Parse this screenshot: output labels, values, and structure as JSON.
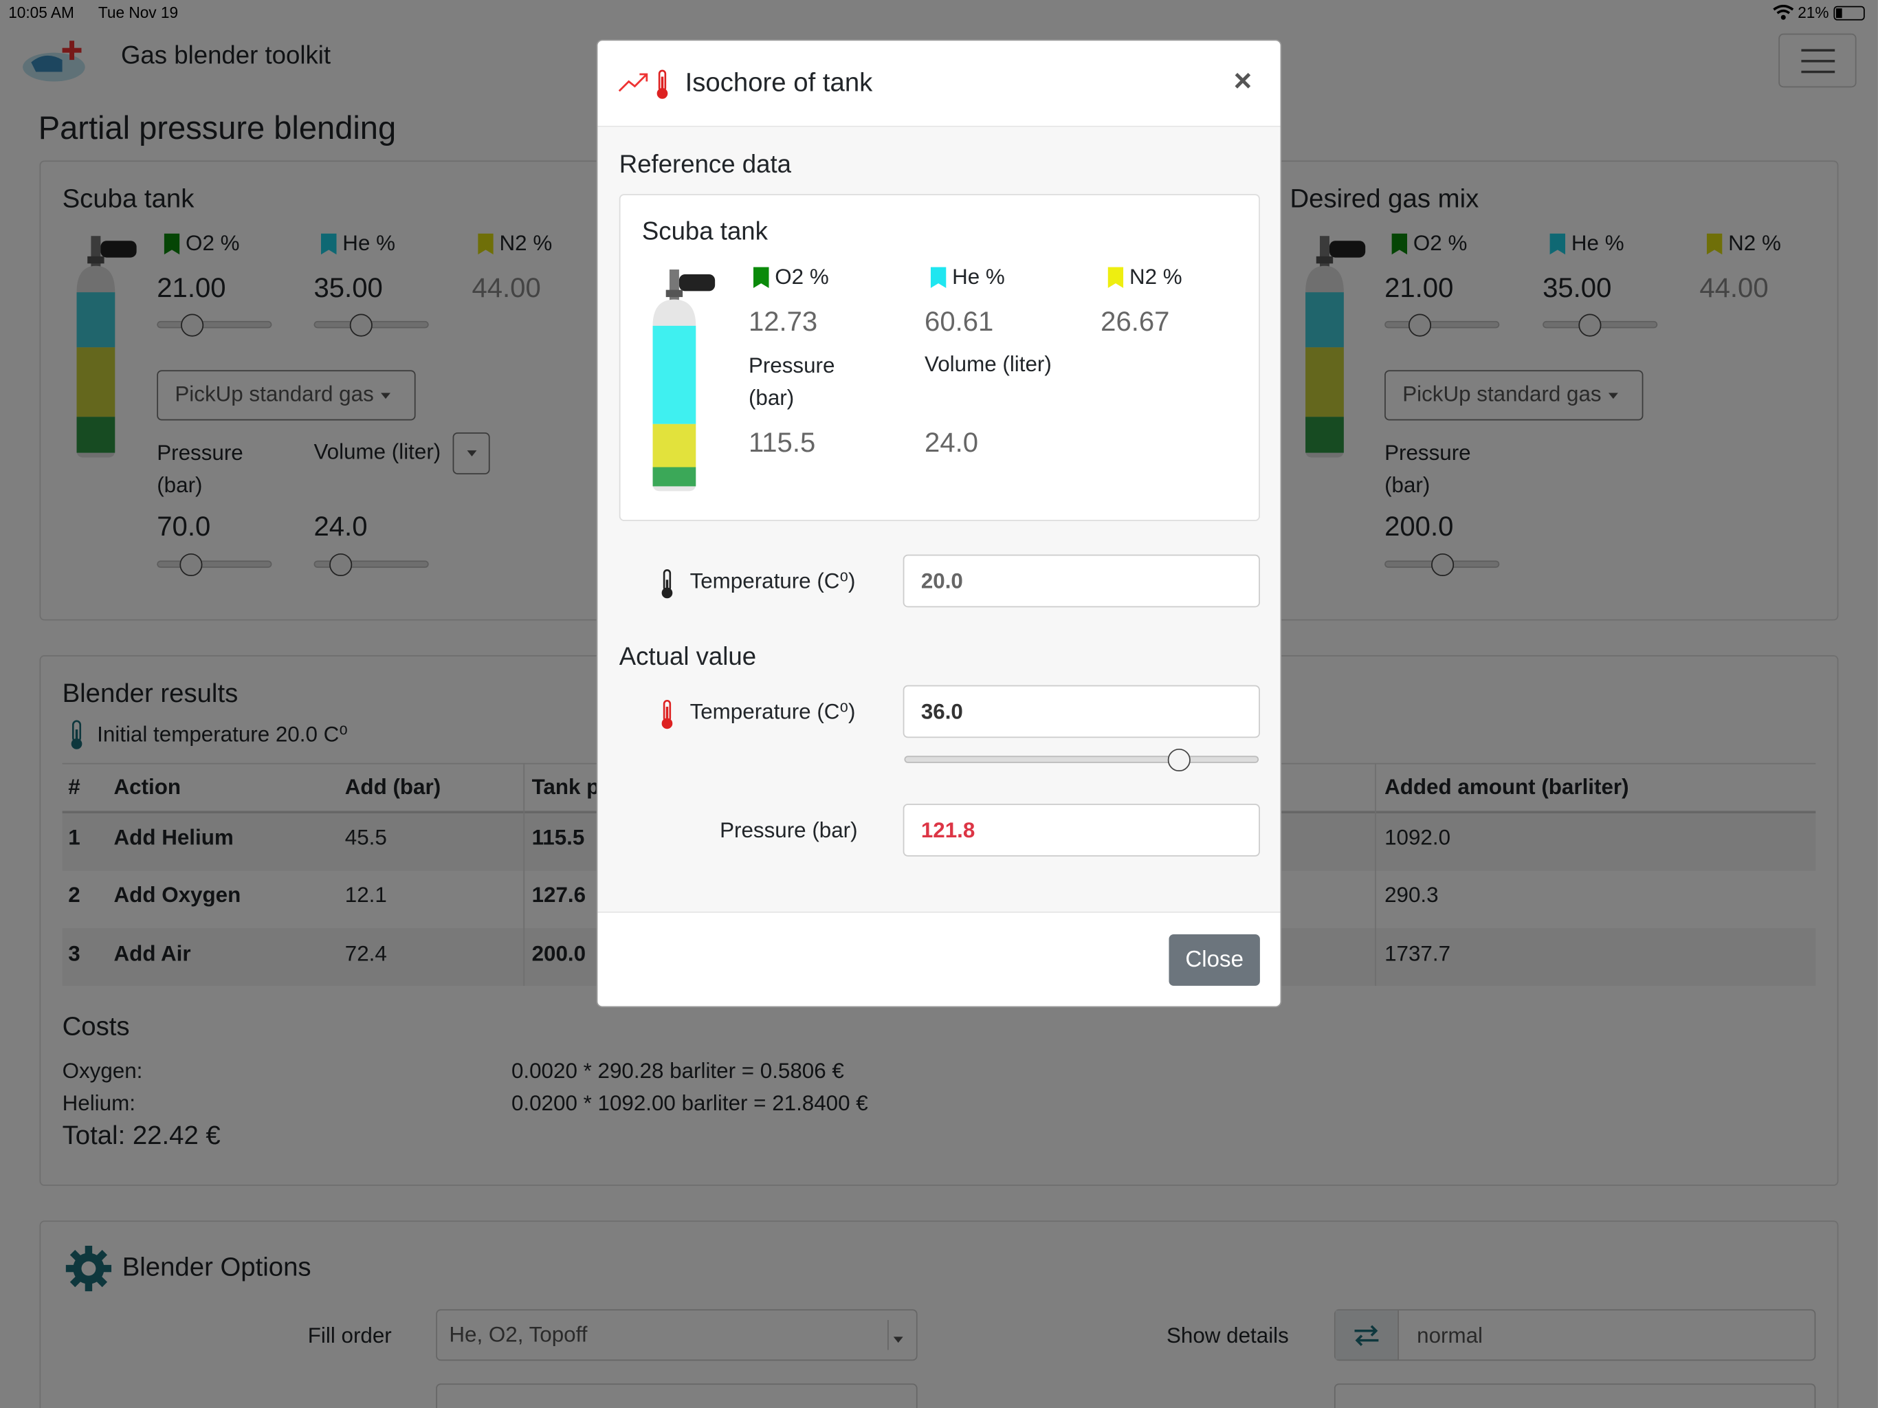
{
  "status_bar": {
    "time": "10:05 AM",
    "date": "Tue Nov 19",
    "battery": "21%"
  },
  "header": {
    "app_title": "Gas blender toolkit",
    "menu_icon": "hamburger-icon"
  },
  "page": {
    "title": "Partial pressure blending"
  },
  "scuba_tank": {
    "title": "Scuba tank",
    "o2_label": "O2 %",
    "he_label": "He %",
    "n2_label": "N2 %",
    "o2": "21.00",
    "he": "35.00",
    "n2": "44.00",
    "standard_gas": "PickUp standard gas",
    "pressure_label_1": "Pressure",
    "pressure_label_2": "(bar)",
    "volume_label": "Volume (liter)",
    "pressure": "70.0",
    "volume": "24.0",
    "sliders": {
      "o2": 0.25,
      "he": 0.38,
      "pressure": 0.23,
      "volume": 0.16
    }
  },
  "desired_mix": {
    "title": "Desired gas mix",
    "o2_label": "O2 %",
    "he_label": "He %",
    "n2_label": "N2 %",
    "o2": "21.00",
    "he": "35.00",
    "n2": "44.00",
    "standard_gas": "PickUp standard gas",
    "pressure_label_1": "Pressure",
    "pressure_label_2": "(bar)",
    "pressure": "200.0",
    "sliders": {
      "o2": 0.25,
      "he": 0.38,
      "pressure": 0.5
    }
  },
  "results": {
    "title": "Blender results",
    "initial_temp": "Initial temperature 20.0 C⁰",
    "headers": {
      "num": "#",
      "action": "Action",
      "add": "Add (bar)",
      "tank": "Tank p",
      "added": "Added amount (barliter)"
    },
    "rows": [
      {
        "num": "1",
        "action": "Add Helium",
        "add": "45.5",
        "tank": "115.5",
        "added": "1092.0"
      },
      {
        "num": "2",
        "action": "Add Oxygen",
        "add": "12.1",
        "tank": "127.6",
        "added": "290.3"
      },
      {
        "num": "3",
        "action": "Add Air",
        "add": "72.4",
        "tank": "200.0",
        "added": "1737.7"
      }
    ]
  },
  "costs": {
    "title": "Costs",
    "oxygen_label": "Oxygen:",
    "oxygen_value": "0.0020 * 290.28 barliter = 0.5806 €",
    "helium_label": "Helium:",
    "helium_value": "0.0200 * 1092.00 barliter = 21.8400 €",
    "total": "Total: 22.42 €"
  },
  "options": {
    "title": "Blender Options",
    "fill_order_label": "Fill order",
    "fill_order_value": "He, O2, Topoff",
    "show_details_label": "Show details",
    "show_details_value": "normal"
  },
  "modal": {
    "title": "Isochore of tank",
    "reference_heading": "Reference data",
    "tank_title": "Scuba tank",
    "o2_label": "O2 %",
    "he_label": "He %",
    "n2_label": "N2 %",
    "o2": "12.73",
    "he": "60.61",
    "n2": "26.67",
    "pressure_label_1": "Pressure",
    "pressure_label_2": "(bar)",
    "volume_label": "Volume (liter)",
    "pressure": "115.5",
    "volume": "24.0",
    "ref_temp_label": "Temperature (C⁰)",
    "ref_temp": "20.0",
    "actual_heading": "Actual value",
    "act_temp_label": "Temperature (C⁰)",
    "act_temp": "36.0",
    "temp_slider": 0.79,
    "act_pressure_label": "Pressure (bar)",
    "act_pressure": "121.8",
    "close_label": "Close"
  },
  "colors": {
    "o2": "#0a8a0a",
    "he": "#1fd1e6",
    "n2": "#dede10",
    "danger": "#dc3545",
    "accent_teal": "#1d6f7a"
  }
}
